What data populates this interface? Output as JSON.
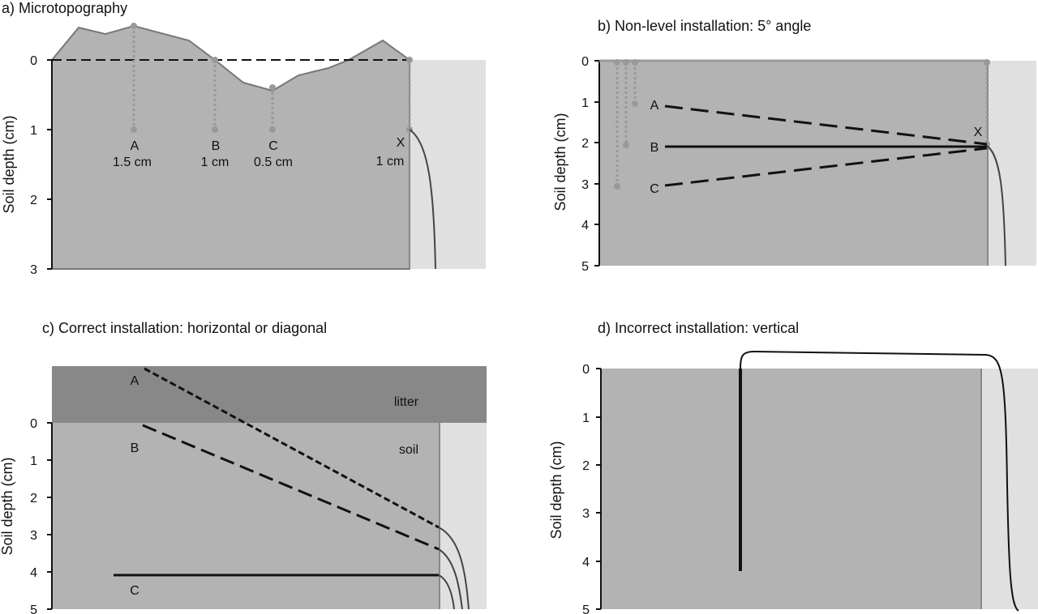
{
  "colors": {
    "soil": "#b3b3b3",
    "litter": "#888888",
    "background_strip": "#e0e0e0",
    "marker": "#999999",
    "line": "#111111"
  },
  "panel_a": {
    "title": "a) Microtopography",
    "ylabel": "Soil depth (cm)",
    "ticks": [
      "0",
      "1",
      "2",
      "3"
    ],
    "labels": {
      "A": "A",
      "A_value": "1.5 cm",
      "B": "B",
      "B_value": "1 cm",
      "C": "C",
      "C_value": "0.5 cm",
      "X": "X",
      "X_value": "1 cm"
    }
  },
  "panel_b": {
    "title": "b) Non-level installation: 5° angle",
    "ylabel": "Soil depth (cm)",
    "ticks": [
      "0",
      "1",
      "2",
      "3",
      "4",
      "5"
    ],
    "labels": {
      "A": "A",
      "B": "B",
      "C": "C",
      "X": "X"
    }
  },
  "panel_c": {
    "title": "c) Correct installation: horizontal or diagonal",
    "ylabel": "Soil depth (cm)",
    "ticks": [
      "0",
      "1",
      "2",
      "3",
      "4",
      "5"
    ],
    "labels": {
      "A": "A",
      "B": "B",
      "C": "C",
      "litter": "litter",
      "soil": "soil"
    }
  },
  "panel_d": {
    "title": "d) Incorrect installation: vertical",
    "ylabel": "Soil depth (cm)",
    "ticks": [
      "0",
      "1",
      "2",
      "3",
      "4",
      "5"
    ]
  }
}
